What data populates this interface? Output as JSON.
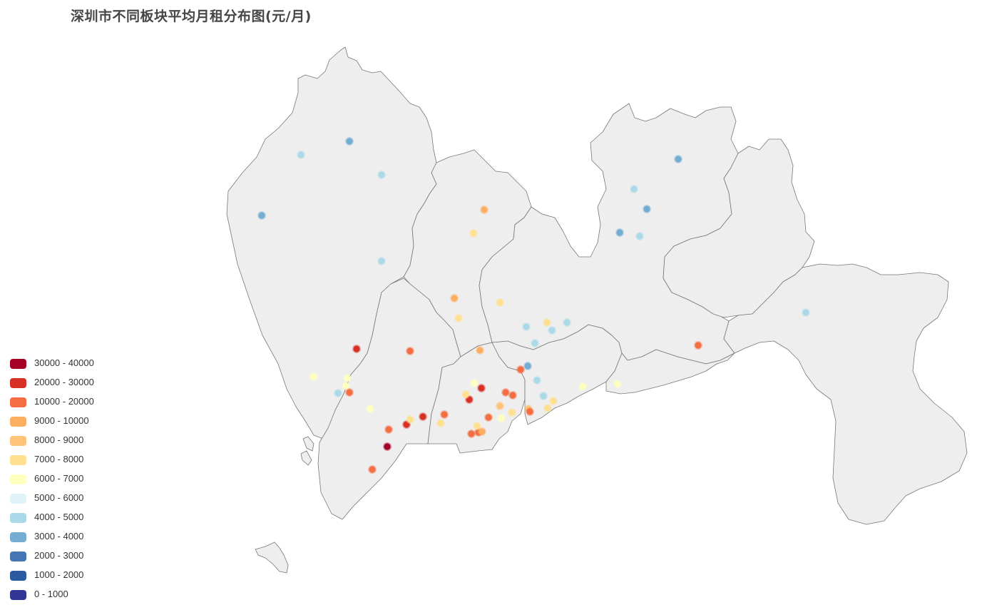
{
  "title": "深圳市不同板块平均月租分布图(元/月)",
  "map": {
    "land_fill": "#eeeeee",
    "border_color": "#777777"
  },
  "legend": [
    {
      "label": "30000 - 40000",
      "color": "#a50026",
      "min": 30000,
      "max": 40000
    },
    {
      "label": "20000 - 30000",
      "color": "#d73027",
      "min": 20000,
      "max": 30000
    },
    {
      "label": "10000 - 20000",
      "color": "#f46d43",
      "min": 10000,
      "max": 20000
    },
    {
      "label": "9000 - 10000",
      "color": "#fdae61",
      "min": 9000,
      "max": 10000
    },
    {
      "label": "8000 - 9000",
      "color": "#fdc47a",
      "min": 8000,
      "max": 9000
    },
    {
      "label": "7000 - 8000",
      "color": "#fee090",
      "min": 7000,
      "max": 8000
    },
    {
      "label": "6000 - 7000",
      "color": "#ffffbf",
      "min": 6000,
      "max": 7000
    },
    {
      "label": "5000 - 6000",
      "color": "#e0f3f8",
      "min": 5000,
      "max": 6000
    },
    {
      "label": "4000 - 5000",
      "color": "#abd9e9",
      "min": 4000,
      "max": 5000
    },
    {
      "label": "3000 - 4000",
      "color": "#74add1",
      "min": 3000,
      "max": 4000
    },
    {
      "label": "2000 - 3000",
      "color": "#4575b4",
      "min": 2000,
      "max": 3000
    },
    {
      "label": "1000 - 2000",
      "color": "#2c5aa0",
      "min": 1000,
      "max": 2000
    },
    {
      "label": "0 - 1000",
      "color": "#313695",
      "min": 0,
      "max": 1000
    }
  ]
}
